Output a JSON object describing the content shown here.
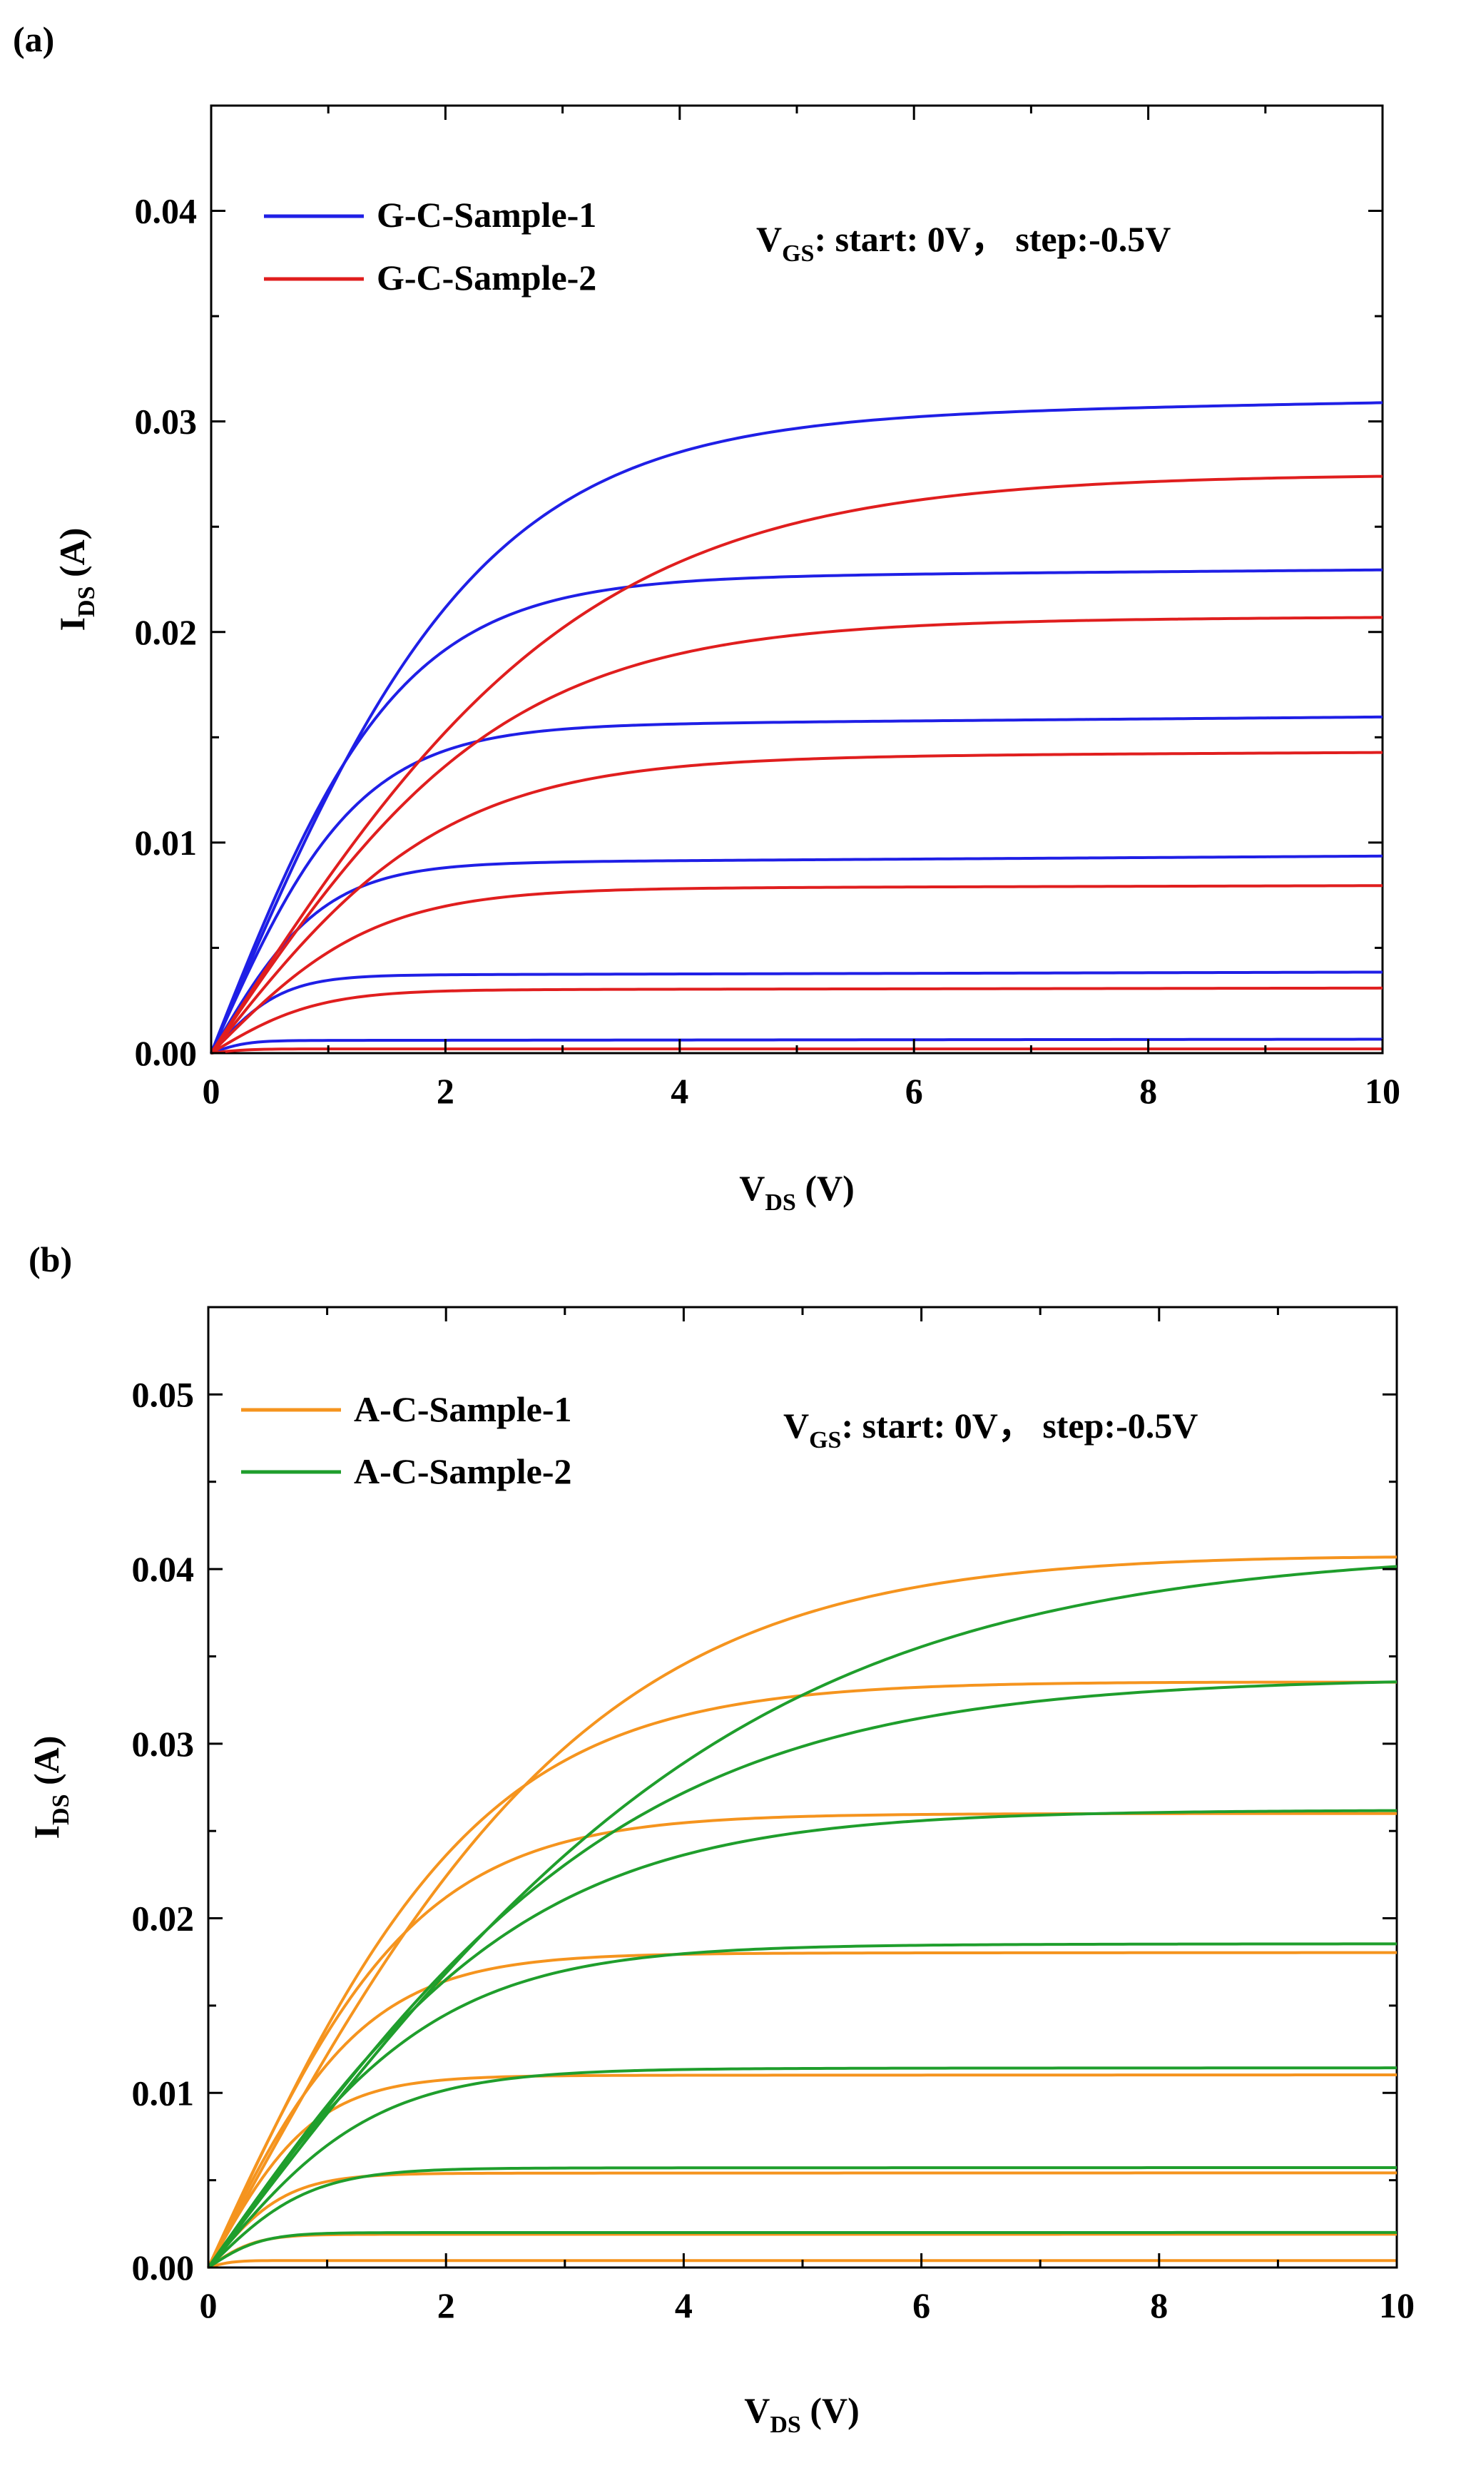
{
  "chart_data": [
    {
      "panel_label": "(a)",
      "type": "line",
      "title": "",
      "xlabel_main": "V",
      "xlabel_sub": "DS",
      "xlabel_unit": " (V)",
      "ylabel_main": "I",
      "ylabel_sub": "DS",
      "ylabel_unit": " (A)",
      "xlim": [
        0,
        10
      ],
      "ylim": [
        0,
        0.045
      ],
      "xticks": [
        0,
        2,
        4,
        6,
        8,
        10
      ],
      "xtick_labels": [
        "0",
        "2",
        "4",
        "6",
        "8",
        "10"
      ],
      "yticks": [
        0,
        0.01,
        0.02,
        0.03,
        0.04
      ],
      "ytick_labels": [
        "0.00",
        "0.01",
        "0.02",
        "0.03",
        "0.04"
      ],
      "annotation": {
        "main": "V",
        "sub": "GS",
        "rest": ": start: 0V，  step:-0.5V"
      },
      "legend_position": "top-left",
      "series": [
        {
          "name": "G-C-Sample-1",
          "legend_label": "G-C-Sample-1",
          "color": "#1f1fe6",
          "curves": [
            {
              "vgs": "0V",
              "i_sat": 0.03,
              "v_knee": 2.3,
              "lambda": 0.003
            },
            {
              "vgs": "-0.5V",
              "i_sat": 0.0225,
              "v_knee": 1.6,
              "lambda": 0.002
            },
            {
              "vgs": "-1.0V",
              "i_sat": 0.0155,
              "v_knee": 1.25,
              "lambda": 0.003
            },
            {
              "vgs": "-1.5V",
              "i_sat": 0.009,
              "v_knee": 0.95,
              "lambda": 0.004
            },
            {
              "vgs": "-2.0V",
              "i_sat": 0.0037,
              "v_knee": 0.6,
              "lambda": 0.004
            },
            {
              "vgs": "-2.5V",
              "i_sat": 0.0006,
              "v_knee": 0.3,
              "lambda": 0.01
            }
          ]
        },
        {
          "name": "G-C-Sample-2",
          "legend_label": "G-C-Sample-2",
          "color": "#e01e1e",
          "curves": [
            {
              "vgs": "0V",
              "i_sat": 0.0275,
              "v_knee": 3.2,
              "lambda": 0.0
            },
            {
              "vgs": "-0.5V",
              "i_sat": 0.0205,
              "v_knee": 2.5,
              "lambda": 0.001
            },
            {
              "vgs": "-1.0V",
              "i_sat": 0.014,
              "v_knee": 2.0,
              "lambda": 0.002
            },
            {
              "vgs": "-1.5V",
              "i_sat": 0.0078,
              "v_knee": 1.4,
              "lambda": 0.002
            },
            {
              "vgs": "-2.0V",
              "i_sat": 0.003,
              "v_knee": 0.9,
              "lambda": 0.003
            },
            {
              "vgs": "-2.5V",
              "i_sat": 0.0002,
              "v_knee": 0.3,
              "lambda": 0.0
            }
          ]
        }
      ]
    },
    {
      "panel_label": "(b)",
      "type": "line",
      "title": "",
      "xlabel_main": "V",
      "xlabel_sub": "DS",
      "xlabel_unit": " (V)",
      "ylabel_main": "I",
      "ylabel_sub": "DS",
      "ylabel_unit": " (A)",
      "xlim": [
        0,
        10
      ],
      "ylim": [
        0,
        0.055
      ],
      "xticks": [
        0,
        2,
        4,
        6,
        8,
        10
      ],
      "xtick_labels": [
        "0",
        "2",
        "4",
        "6",
        "8",
        "10"
      ],
      "yticks": [
        0,
        0.01,
        0.02,
        0.03,
        0.04,
        0.05
      ],
      "ytick_labels": [
        "0.00",
        "0.01",
        "0.02",
        "0.03",
        "0.04",
        "0.05"
      ],
      "annotation": {
        "main": "V",
        "sub": "GS",
        "rest": ": start: 0V，  step:-0.5V"
      },
      "legend_position": "top-left",
      "series": [
        {
          "name": "A-C-Sample-1",
          "legend_label": "A-C-Sample-1",
          "color": "#f5941e",
          "curves": [
            {
              "vgs": "0V",
              "i_sat": 0.0415,
              "v_knee": 3.3,
              "lambda": -0.0015
            },
            {
              "vgs": "-0.5V",
              "i_sat": 0.0337,
              "v_knee": 2.3,
              "lambda": -0.0005
            },
            {
              "vgs": "-1.0V",
              "i_sat": 0.026,
              "v_knee": 1.75,
              "lambda": 0.0
            },
            {
              "vgs": "-1.5V",
              "i_sat": 0.018,
              "v_knee": 1.3,
              "lambda": 0.0002
            },
            {
              "vgs": "-2.0V",
              "i_sat": 0.011,
              "v_knee": 0.9,
              "lambda": 0.0003
            },
            {
              "vgs": "-2.5V",
              "i_sat": 0.0054,
              "v_knee": 0.65,
              "lambda": 0.0004
            },
            {
              "vgs": "-3.0V",
              "i_sat": 0.0019,
              "v_knee": 0.4,
              "lambda": 0.0002
            },
            {
              "vgs": "-3.5V",
              "i_sat": 0.0004,
              "v_knee": 0.2,
              "lambda": 0.0
            }
          ]
        },
        {
          "name": "A-C-Sample-2",
          "legend_label": "A-C-Sample-2",
          "color": "#1f9e2c",
          "curves": [
            {
              "vgs": "0V",
              "i_sat": 0.0412,
              "v_knee": 4.6,
              "lambda": 0.0
            },
            {
              "vgs": "-0.5V",
              "i_sat": 0.0338,
              "v_knee": 3.6,
              "lambda": 0.0
            },
            {
              "vgs": "-1.0V",
              "i_sat": 0.0262,
              "v_knee": 2.7,
              "lambda": 0.0
            },
            {
              "vgs": "-1.5V",
              "i_sat": 0.0185,
              "v_knee": 1.9,
              "lambda": 0.0002
            },
            {
              "vgs": "-2.0V",
              "i_sat": 0.0114,
              "v_knee": 1.4,
              "lambda": 0.0003
            },
            {
              "vgs": "-2.5V",
              "i_sat": 0.0057,
              "v_knee": 0.85,
              "lambda": 0.0004
            },
            {
              "vgs": "-3.0V",
              "i_sat": 0.002,
              "v_knee": 0.45,
              "lambda": 0.0003
            }
          ]
        }
      ]
    }
  ]
}
